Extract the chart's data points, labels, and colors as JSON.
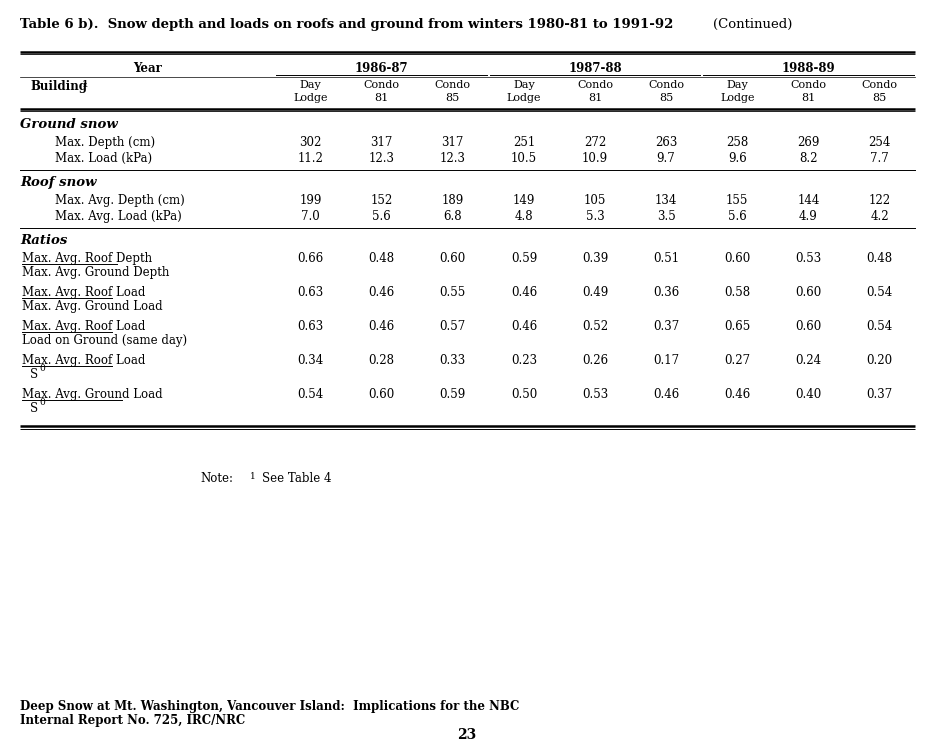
{
  "title_bold": "Table 6 b).  Snow depth and loads on roofs and ground from winters 1980-81 to 1991-92 ",
  "title_normal": "(Continued)",
  "page_number": "23",
  "footer_line1": "Deep Snow at Mt. Washington, Vancouver Island:  Implications for the NBC",
  "footer_line2": "Internal Report No. 725, IRC/NRC",
  "note_label": "Note:",
  "note_sup": "1",
  "note_text": "See Table 4",
  "years": [
    "1986-87",
    "1987-88",
    "1988-89"
  ],
  "col_headers_line1": [
    "Day",
    "Condo",
    "Condo",
    "Day",
    "Condo",
    "Condo",
    "Day",
    "Condo",
    "Condo"
  ],
  "col_headers_line2": [
    "Lodge",
    "81",
    "85",
    "Lodge",
    "81",
    "85",
    "Lodge",
    "81",
    "85"
  ],
  "sections": [
    {
      "section_title": "Ground snow",
      "rows": [
        {
          "type": "simple",
          "label": "Max. Depth (cm)",
          "values": [
            "302",
            "317",
            "317",
            "251",
            "272",
            "263",
            "258",
            "269",
            "254"
          ]
        },
        {
          "type": "simple",
          "label": "Max. Load (kPa)",
          "values": [
            "11.2",
            "12.3",
            "12.3",
            "10.5",
            "10.9",
            "9.7",
            "9.6",
            "8.2",
            "7.7"
          ]
        }
      ]
    },
    {
      "section_title": "Roof snow",
      "rows": [
        {
          "type": "simple",
          "label": "Max. Avg. Depth (cm)",
          "values": [
            "199",
            "152",
            "189",
            "149",
            "105",
            "134",
            "155",
            "144",
            "122"
          ]
        },
        {
          "type": "simple",
          "label": "Max. Avg. Load (kPa)",
          "values": [
            "7.0",
            "5.6",
            "6.8",
            "4.8",
            "5.3",
            "3.5",
            "5.6",
            "4.9",
            "4.2"
          ]
        }
      ]
    },
    {
      "section_title": "Ratios",
      "rows": [
        {
          "type": "ratio",
          "label_top": "Max. Avg. Roof Depth",
          "label_bot": "Max. Avg. Ground Depth",
          "bot_is_s0": false,
          "values": [
            "0.66",
            "0.48",
            "0.60",
            "0.59",
            "0.39",
            "0.51",
            "0.60",
            "0.53",
            "0.48"
          ]
        },
        {
          "type": "ratio",
          "label_top": "Max. Avg. Roof Load",
          "label_bot": "Max. Avg. Ground Load",
          "bot_is_s0": false,
          "values": [
            "0.63",
            "0.46",
            "0.55",
            "0.46",
            "0.49",
            "0.36",
            "0.58",
            "0.60",
            "0.54"
          ]
        },
        {
          "type": "ratio",
          "label_top": "Max. Avg. Roof Load",
          "label_bot": "Load on Ground (same day)",
          "bot_is_s0": false,
          "values": [
            "0.63",
            "0.46",
            "0.57",
            "0.46",
            "0.52",
            "0.37",
            "0.65",
            "0.60",
            "0.54"
          ]
        },
        {
          "type": "ratio",
          "label_top": "Max. Avg. Roof Load",
          "label_bot": "S_0",
          "bot_is_s0": true,
          "values": [
            "0.34",
            "0.28",
            "0.33",
            "0.23",
            "0.26",
            "0.17",
            "0.27",
            "0.24",
            "0.20"
          ]
        },
        {
          "type": "ratio",
          "label_top": "Max. Avg. Ground Load",
          "label_bot": "S_0",
          "bot_is_s0": true,
          "values": [
            "0.54",
            "0.60",
            "0.59",
            "0.50",
            "0.53",
            "0.46",
            "0.46",
            "0.40",
            "0.37"
          ]
        }
      ]
    }
  ]
}
